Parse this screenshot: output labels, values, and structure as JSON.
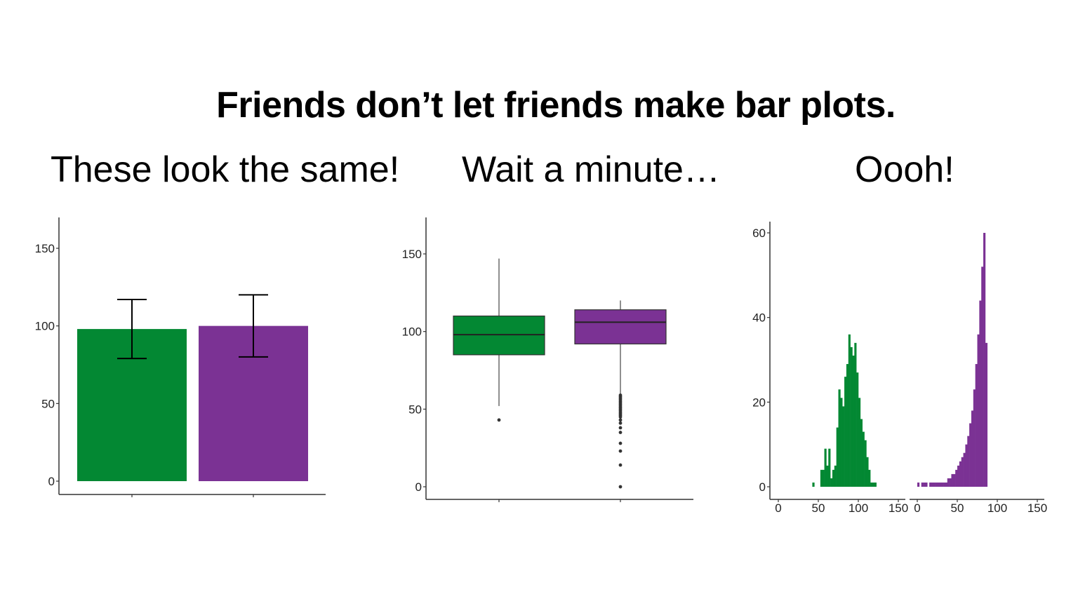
{
  "slide": {
    "title": "Friends don’t let friends make bar plots.",
    "subtitles": [
      "These look the same!",
      "Wait a minute…",
      "Oooh!"
    ]
  },
  "colors": {
    "green": "#038833",
    "purple": "#7b3294",
    "axis": "#333333"
  },
  "chart_data": [
    {
      "type": "bar",
      "title": "These look the same!",
      "categories": [
        "",
        ""
      ],
      "values": [
        98,
        100
      ],
      "error_bars": [
        [
          79,
          117
        ],
        [
          80,
          120
        ]
      ],
      "ylim": [
        0,
        165
      ],
      "yticks": [
        0,
        50,
        100,
        150
      ],
      "colors": [
        "#038833",
        "#7b3294"
      ]
    },
    {
      "type": "box",
      "title": "Wait a minute…",
      "categories": [
        "",
        ""
      ],
      "boxes": [
        {
          "whisker_low": 52,
          "q1": 85,
          "median": 98,
          "q3": 110,
          "whisker_high": 147,
          "outliers": [
            43
          ]
        },
        {
          "whisker_low": 60,
          "q1": 92,
          "median": 106,
          "q3": 114,
          "whisker_high": 120,
          "outliers": [
            59,
            58,
            57,
            56,
            55,
            54,
            53,
            52,
            51,
            50,
            49,
            48,
            47,
            46,
            45,
            43,
            41,
            38,
            35,
            28,
            23,
            14,
            0
          ]
        }
      ],
      "ylim": [
        -8,
        173
      ],
      "yticks": [
        0,
        50,
        100,
        150
      ],
      "colors": [
        "#038833",
        "#7b3294"
      ]
    },
    {
      "type": "histogram",
      "title": "Oooh!",
      "ylim": [
        0,
        62
      ],
      "yticks": [
        0,
        20,
        40,
        60
      ],
      "panels": [
        {
          "xlim": [
            0,
            150
          ],
          "xticks": [
            0,
            50,
            100,
            150
          ],
          "bin_width": 2.5,
          "bin_start": 42.5,
          "counts": [
            1,
            0,
            0,
            0,
            4,
            4,
            9,
            5,
            9,
            2,
            4,
            5,
            14,
            23,
            21,
            19,
            26,
            29,
            36,
            33,
            31,
            34,
            27,
            21,
            16,
            13,
            11,
            7,
            4,
            1,
            1,
            1
          ],
          "color": "#038833"
        },
        {
          "xlim": [
            0,
            150
          ],
          "xticks": [
            0,
            50,
            100,
            150
          ],
          "bin_width": 2.5,
          "bin_start": 0,
          "counts": [
            1,
            0,
            1,
            1,
            1,
            0,
            1,
            1,
            1,
            1,
            1,
            1,
            1,
            1,
            1,
            2,
            2,
            3,
            3,
            4,
            5,
            6,
            7,
            8,
            10,
            12,
            15,
            18,
            23,
            29,
            36,
            44,
            52,
            60,
            34
          ],
          "color": "#7b3294"
        }
      ]
    }
  ]
}
